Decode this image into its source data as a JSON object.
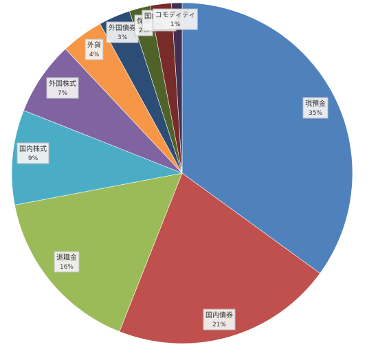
{
  "chart_data": {
    "type": "pie",
    "title": "",
    "slices": [
      {
        "label": "現預金",
        "percent_label": "35%",
        "value": 35,
        "color": "#4f81bd"
      },
      {
        "label": "国内債券",
        "percent_label": "21%",
        "value": 21,
        "color": "#c0504d"
      },
      {
        "label": "退職金",
        "percent_label": "16%",
        "value": 16,
        "color": "#9bbb59"
      },
      {
        "label": "国内株式",
        "percent_label": "9%",
        "value": 9,
        "color": "#4bacc6"
      },
      {
        "label": "外国株式",
        "percent_label": "7%",
        "value": 7,
        "color": "#8064a2"
      },
      {
        "label": "外貨",
        "percent_label": "4%",
        "value": 4,
        "color": "#f79646"
      },
      {
        "label": "外国債券",
        "percent_label": "3%",
        "value": 3,
        "color": "#2c4d75"
      },
      {
        "label": "保険",
        "percent_label": "2%",
        "value": 2,
        "color": "#4f6228"
      },
      {
        "label": "国内REIT",
        "percent_label": "2%",
        "value": 2,
        "color": "#772c2a"
      },
      {
        "label": "コモディティ",
        "percent_label": "1%",
        "value": 1,
        "color": "#403152"
      }
    ],
    "legend": "none",
    "data_labels": "category-and-percent"
  }
}
